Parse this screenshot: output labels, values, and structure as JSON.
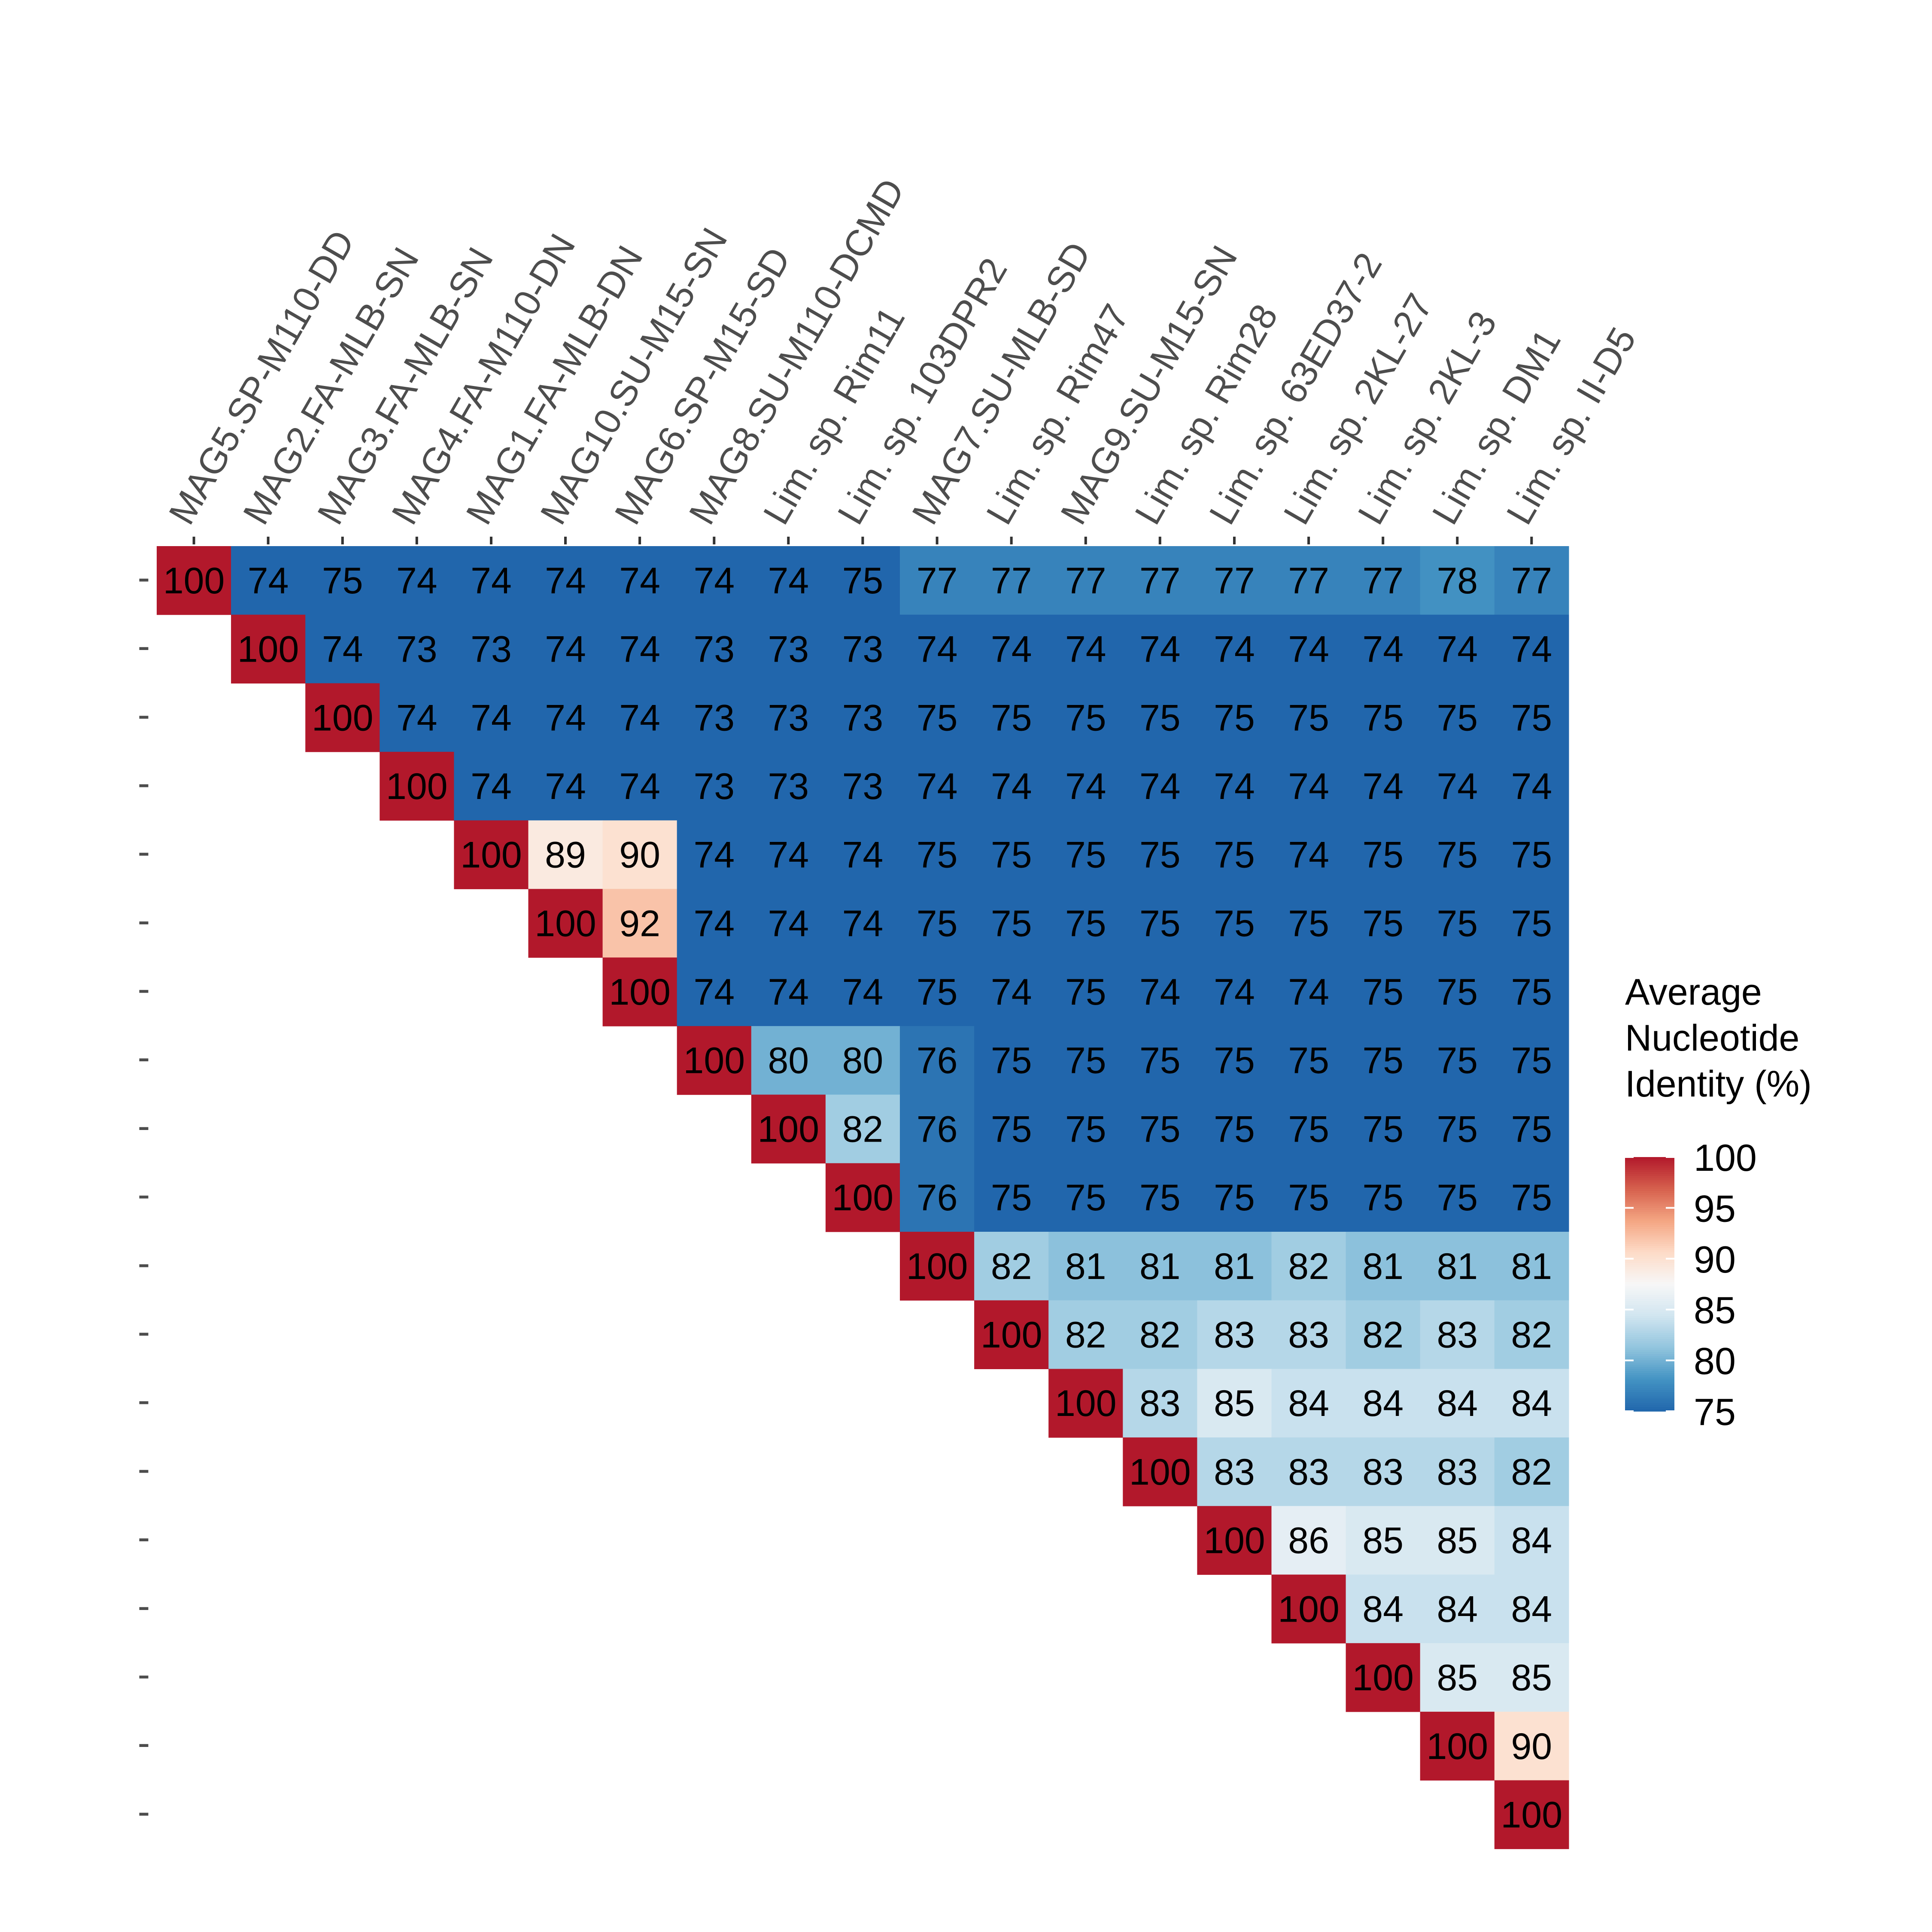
{
  "chart_data": {
    "type": "heatmap",
    "title": "",
    "genomes": [
      "MAG5.SP-M110-DD",
      "MAG2.FA-MLB-SN",
      "MAG3.FA-MLB-SN",
      "MAG4.FA-M110-DN",
      "MAG1.FA-MLB-DN",
      "MAG10.SU-M15-SN",
      "MAG6.SP-M15-SD",
      "MAG8.SU-M110-DCMD",
      "Lim. sp. Rim11",
      "Lim. sp. 103DPR2",
      "MAG7.SU-MLB-SD",
      "Lim. sp. Rim47",
      "MAG9.SU-M15-SN",
      "Lim. sp. Rim28",
      "Lim. sp. 63ED37-2",
      "Lim. sp. 2KL-27",
      "Lim. sp. 2KL-3",
      "Lim. sp. DM1",
      "Lim. sp. II-D5"
    ],
    "upper_triangle_values": [
      [
        100,
        74,
        75,
        74,
        74,
        74,
        74,
        74,
        74,
        75,
        77,
        77,
        77,
        77,
        77,
        77,
        77,
        78,
        77
      ],
      [
        100,
        74,
        73,
        73,
        74,
        74,
        73,
        73,
        73,
        74,
        74,
        74,
        74,
        74,
        74,
        74,
        74,
        74
      ],
      [
        100,
        74,
        74,
        74,
        74,
        73,
        73,
        73,
        75,
        75,
        75,
        75,
        75,
        75,
        75,
        75,
        75
      ],
      [
        100,
        74,
        74,
        74,
        73,
        73,
        73,
        74,
        74,
        74,
        74,
        74,
        74,
        74,
        74,
        74
      ],
      [
        100,
        89,
        90,
        74,
        74,
        74,
        75,
        75,
        75,
        75,
        75,
        74,
        75,
        75,
        75
      ],
      [
        100,
        92,
        74,
        74,
        74,
        75,
        75,
        75,
        75,
        75,
        75,
        75,
        75,
        75
      ],
      [
        100,
        74,
        74,
        74,
        75,
        74,
        75,
        74,
        74,
        74,
        75,
        75,
        75
      ],
      [
        100,
        80,
        80,
        76,
        75,
        75,
        75,
        75,
        75,
        75,
        75,
        75
      ],
      [
        100,
        82,
        76,
        75,
        75,
        75,
        75,
        75,
        75,
        75,
        75
      ],
      [
        100,
        76,
        75,
        75,
        75,
        75,
        75,
        75,
        75,
        75
      ],
      [
        100,
        82,
        81,
        81,
        81,
        82,
        81,
        81,
        81
      ],
      [
        100,
        82,
        82,
        83,
        83,
        82,
        83,
        82
      ],
      [
        100,
        83,
        85,
        84,
        84,
        84,
        84
      ],
      [
        100,
        83,
        83,
        83,
        83,
        82
      ],
      [
        100,
        86,
        85,
        85,
        84
      ],
      [
        100,
        84,
        84,
        84
      ],
      [
        100,
        85,
        85
      ],
      [
        100,
        90
      ],
      [
        100
      ]
    ],
    "row_tick_labels": [
      "-",
      "-",
      "-",
      "-",
      "-",
      "-",
      "-",
      "-",
      "-",
      "-",
      "-",
      "-",
      "-",
      "-",
      "-",
      "-",
      "-",
      "-",
      "-"
    ],
    "legend": {
      "title_lines": [
        "Average",
        "Nucleotide",
        "Identity (%)"
      ],
      "ticks": [
        100,
        95,
        90,
        85,
        80,
        75
      ],
      "range": [
        75,
        100
      ],
      "position": "right"
    },
    "color_scale": {
      "low": "#2166ac",
      "stops": [
        "#2166ac",
        "#4393c3",
        "#92c5de",
        "#d1e5f0",
        "#f7f7f7",
        "#fddbc7",
        "#f4a582",
        "#d6604d",
        "#b2182b"
      ],
      "high": "#b2182b",
      "clamp_below": 75
    },
    "grid": false
  }
}
